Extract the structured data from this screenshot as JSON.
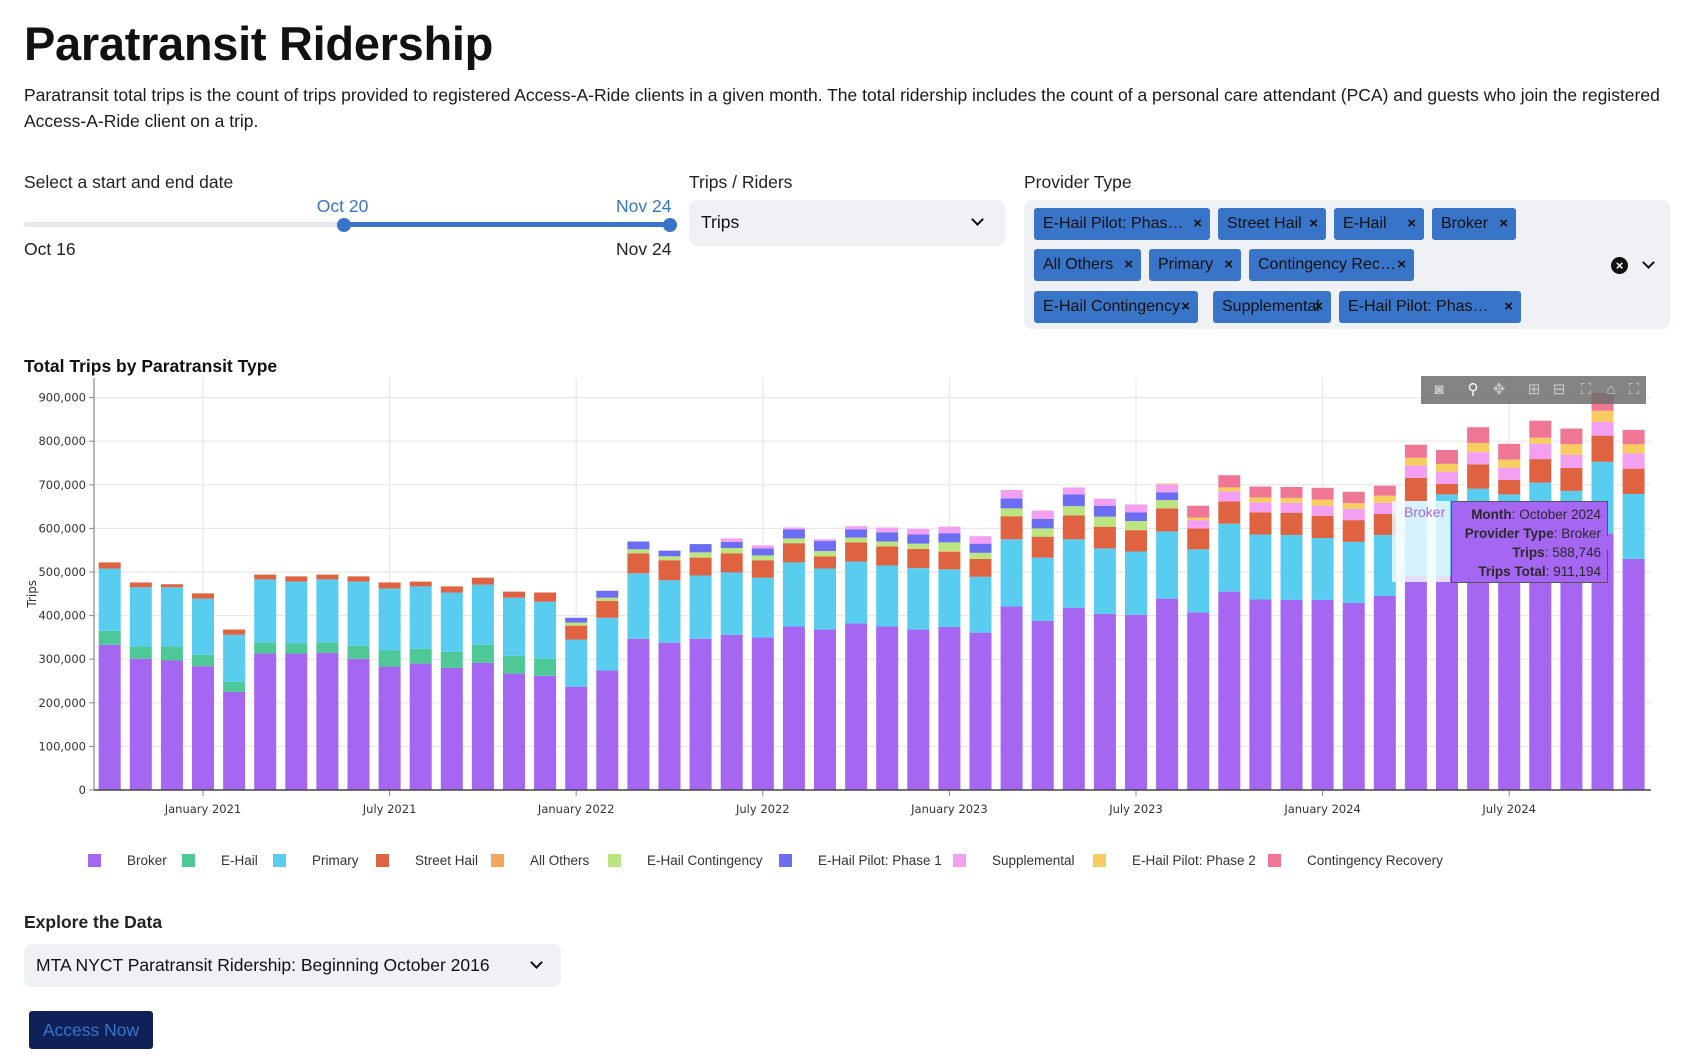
{
  "header": {
    "title": "Paratransit Ridership",
    "description": "Paratransit total trips is the count of trips provided to registered Access-A-Ride clients in a given month. The total ridership includes the count of a personal care attendant (PCA) and guests who join the registered Access-A-Ride client on a trip."
  },
  "date_slider": {
    "label": "Select a start and end date",
    "min_label": "Oct 16",
    "max_label": "Nov 24",
    "start_value": "Oct 20",
    "end_value": "Nov 24",
    "start_fraction": 0.495,
    "end_fraction": 1.0
  },
  "trips_riders": {
    "label": "Trips / Riders",
    "selected": "Trips"
  },
  "provider_type": {
    "label": "Provider Type",
    "chips": [
      "E-Hail Pilot: Phas…",
      "Street Hail",
      "E-Hail",
      "Broker",
      "All Others",
      "Primary",
      "Contingency Rec…",
      "E-Hail Contingency",
      "Supplemental",
      "E-Hail Pilot: Phas…"
    ],
    "remove_glyph": "×"
  },
  "modebar": {
    "icons": [
      "camera-icon",
      "zoom-icon",
      "pan-icon",
      "zoom-in-icon",
      "zoom-out-icon",
      "autoscale-icon",
      "reset-axes-icon",
      "fullscreen-icon"
    ]
  },
  "tooltip": {
    "hover_label": "Broker",
    "month_key": "Month",
    "month_val": "October 2024",
    "provider_key": "Provider Type",
    "provider_val": "Broker",
    "trips_key": "Trips",
    "trips_val": "588,746",
    "total_key": "Trips Total",
    "total_val": "911,194"
  },
  "explore": {
    "title": "Explore the Data",
    "dataset": "MTA NYCT Paratransit Ridership: Beginning October 2016",
    "button": "Access Now"
  },
  "chart_data": {
    "type": "bar",
    "stacked": true,
    "title": "Total Trips by Paratransit Type",
    "xlabel": "",
    "ylabel": "Trips",
    "ylim": [
      0,
      950000
    ],
    "yticks": [
      0,
      100000,
      200000,
      300000,
      400000,
      500000,
      600000,
      700000,
      800000,
      900000
    ],
    "ytick_labels": [
      "0",
      "100,000",
      "200,000",
      "300,000",
      "400,000",
      "500,000",
      "600,000",
      "700,000",
      "800,000",
      "900,000"
    ],
    "xtick_labels": [
      "January 2021",
      "July 2021",
      "January 2022",
      "July 2022",
      "January 2023",
      "July 2023",
      "January 2024",
      "July 2024"
    ],
    "xtick_months": [
      "2021-01",
      "2021-07",
      "2022-01",
      "2022-07",
      "2023-01",
      "2023-07",
      "2024-01",
      "2024-07"
    ],
    "grid": true,
    "legend_position": "bottom",
    "categories": [
      "2020-10",
      "2020-11",
      "2020-12",
      "2021-01",
      "2021-02",
      "2021-03",
      "2021-04",
      "2021-05",
      "2021-06",
      "2021-07",
      "2021-08",
      "2021-09",
      "2021-10",
      "2021-11",
      "2021-12",
      "2022-01",
      "2022-02",
      "2022-03",
      "2022-04",
      "2022-05",
      "2022-06",
      "2022-07",
      "2022-08",
      "2022-09",
      "2022-10",
      "2022-11",
      "2022-12",
      "2023-01",
      "2023-02",
      "2023-03",
      "2023-04",
      "2023-05",
      "2023-06",
      "2023-07",
      "2023-08",
      "2023-09",
      "2023-10",
      "2023-11",
      "2023-12",
      "2024-01",
      "2024-02",
      "2024-03",
      "2024-04",
      "2024-05",
      "2024-06",
      "2024-07",
      "2024-08",
      "2024-09",
      "2024-10",
      "2024-11"
    ],
    "series": [
      {
        "name": "Broker",
        "color": "#a566f2",
        "values": [
          333000,
          301000,
          297000,
          284000,
          225000,
          313000,
          313000,
          315000,
          301000,
          283000,
          290000,
          280000,
          292000,
          267000,
          262000,
          237000,
          274000,
          347000,
          338000,
          347000,
          356000,
          350000,
          375000,
          368000,
          382000,
          375000,
          368000,
          374000,
          361000,
          421000,
          388000,
          418000,
          404000,
          402000,
          439000,
          407000,
          455000,
          437000,
          436000,
          436000,
          429000,
          445000,
          491000,
          491000,
          525000,
          520000,
          525000,
          530000,
          588746,
          530000
        ]
      },
      {
        "name": "E-Hail",
        "color": "#4dc896",
        "values": [
          32000,
          28000,
          32000,
          26000,
          23000,
          25000,
          23000,
          23000,
          30000,
          37000,
          34000,
          37000,
          41000,
          41000,
          39000,
          0,
          0,
          0,
          0,
          0,
          0,
          0,
          0,
          0,
          0,
          0,
          0,
          0,
          0,
          0,
          0,
          0,
          0,
          0,
          0,
          0,
          0,
          0,
          0,
          0,
          0,
          0,
          0,
          0,
          0,
          0,
          0,
          0,
          0,
          0
        ]
      },
      {
        "name": "Primary",
        "color": "#58cdf0",
        "values": [
          143000,
          136000,
          136000,
          129000,
          108000,
          145000,
          142000,
          145000,
          147000,
          142000,
          143000,
          136000,
          138000,
          133000,
          131000,
          108000,
          121000,
          150000,
          143000,
          145000,
          143000,
          137000,
          147000,
          140000,
          142000,
          140000,
          141000,
          132000,
          128000,
          154000,
          145000,
          157000,
          150000,
          145000,
          154000,
          145000,
          156000,
          149000,
          149000,
          142000,
          140000,
          140000,
          172000,
          187000,
          166000,
          158000,
          180000,
          156000,
          164000,
          149000
        ]
      },
      {
        "name": "Street Hail",
        "color": "#e06341",
        "values": [
          14000,
          11000,
          7000,
          12000,
          12000,
          11000,
          12000,
          11000,
          12000,
          14000,
          11000,
          14000,
          16000,
          14000,
          21000,
          32000,
          39000,
          46000,
          46000,
          41000,
          44000,
          40000,
          44000,
          28000,
          44000,
          44000,
          44000,
          40000,
          41000,
          53000,
          48000,
          55000,
          50000,
          49000,
          53000,
          48000,
          51000,
          51000,
          51000,
          51000,
          50000,
          48000,
          53000,
          24000,
          56000,
          33000,
          54000,
          53000,
          60000,
          58000
        ]
      },
      {
        "name": "All Others",
        "color": "#f3a65e",
        "values": [
          0,
          0,
          0,
          0,
          0,
          0,
          0,
          0,
          0,
          0,
          0,
          0,
          0,
          0,
          0,
          0,
          0,
          0,
          0,
          0,
          0,
          0,
          0,
          0,
          0,
          0,
          0,
          2000,
          0,
          0,
          0,
          0,
          0,
          0,
          0,
          0,
          0,
          0,
          0,
          0,
          0,
          0,
          0,
          0,
          0,
          0,
          0,
          0,
          0,
          0
        ]
      },
      {
        "name": "E-Hail Contingency",
        "color": "#bde57f",
        "values": [
          0,
          0,
          0,
          0,
          0,
          0,
          0,
          0,
          0,
          0,
          0,
          0,
          0,
          0,
          0,
          7000,
          7000,
          9000,
          9000,
          12000,
          12000,
          11000,
          11000,
          12000,
          11000,
          11000,
          12000,
          20000,
          14000,
          18000,
          19000,
          21000,
          23000,
          21000,
          19000,
          0,
          0,
          0,
          0,
          0,
          0,
          0,
          0,
          0,
          0,
          0,
          0,
          0,
          0,
          0
        ]
      },
      {
        "name": "E-Hail Pilot: Phase 1",
        "color": "#6b6df2",
        "values": [
          0,
          0,
          0,
          0,
          0,
          0,
          0,
          0,
          0,
          0,
          0,
          0,
          0,
          0,
          0,
          11000,
          16000,
          18000,
          13000,
          19000,
          14000,
          16000,
          21000,
          23000,
          19000,
          21000,
          21000,
          21000,
          21000,
          23000,
          22000,
          27000,
          25000,
          20000,
          18000,
          0,
          0,
          0,
          0,
          0,
          0,
          0,
          0,
          0,
          0,
          0,
          0,
          0,
          0,
          0
        ]
      },
      {
        "name": "Supplemental",
        "color": "#f3a0f2",
        "values": [
          0,
          0,
          0,
          0,
          0,
          0,
          0,
          0,
          0,
          0,
          0,
          0,
          0,
          0,
          0,
          0,
          0,
          0,
          0,
          0,
          8000,
          7000,
          4000,
          4000,
          7000,
          11000,
          13000,
          15000,
          17000,
          19000,
          19000,
          16000,
          16000,
          18000,
          18000,
          19000,
          23000,
          23000,
          23000,
          23000,
          26000,
          26000,
          28000,
          28000,
          28000,
          28000,
          35000,
          30000,
          32000,
          35000
        ]
      },
      {
        "name": "E-Hail Pilot: Phase 2",
        "color": "#f6cd5e",
        "values": [
          0,
          0,
          0,
          0,
          0,
          0,
          0,
          0,
          0,
          0,
          0,
          0,
          0,
          0,
          0,
          0,
          0,
          0,
          0,
          0,
          0,
          0,
          0,
          0,
          0,
          0,
          0,
          0,
          0,
          0,
          0,
          0,
          0,
          0,
          2000,
          6000,
          9000,
          11000,
          11000,
          14000,
          13000,
          16000,
          18000,
          18000,
          21000,
          19000,
          14000,
          24000,
          25000,
          21000
        ]
      },
      {
        "name": "Contingency Recovery",
        "color": "#f07696",
        "values": [
          0,
          0,
          0,
          0,
          0,
          0,
          0,
          0,
          0,
          0,
          0,
          0,
          0,
          0,
          0,
          0,
          0,
          0,
          0,
          0,
          0,
          0,
          0,
          0,
          0,
          0,
          0,
          0,
          0,
          0,
          0,
          0,
          0,
          0,
          0,
          27000,
          28000,
          25000,
          25000,
          27000,
          26000,
          23000,
          30000,
          32000,
          36000,
          36000,
          39000,
          36000,
          41194,
          33000
        ]
      }
    ]
  }
}
